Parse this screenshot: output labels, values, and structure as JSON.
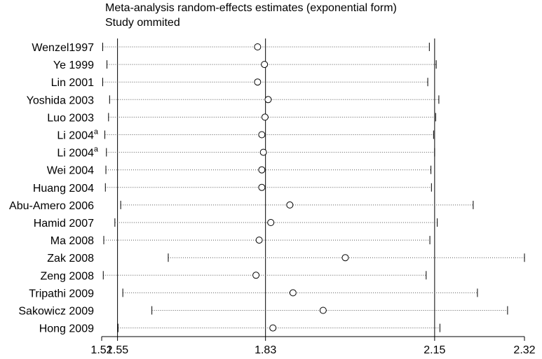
{
  "chart_data": {
    "type": "forest",
    "title": "Meta-analysis random-effects estimates (exponential form)",
    "subtitle": "Study ommited",
    "xlim": [
      1.52,
      2.32
    ],
    "xticks": [
      "1.52",
      "1.55",
      "1.83",
      "2.15",
      "2.32"
    ],
    "reference_lines": [
      1.55,
      1.83,
      2.15
    ],
    "studies": [
      {
        "label": "Wenzel1997",
        "sup": "",
        "estimate": 1.815,
        "lower": 1.522,
        "upper": 2.14
      },
      {
        "label": "Ye 1999",
        "sup": "",
        "estimate": 1.828,
        "lower": 1.53,
        "upper": 2.153
      },
      {
        "label": "Lin 2001",
        "sup": "",
        "estimate": 1.815,
        "lower": 1.522,
        "upper": 2.137
      },
      {
        "label": "Yoshida 2003",
        "sup": "",
        "estimate": 1.835,
        "lower": 1.535,
        "upper": 2.158
      },
      {
        "label": "Luo 2003",
        "sup": "",
        "estimate": 1.829,
        "lower": 1.533,
        "upper": 2.152
      },
      {
        "label": "Li 2004",
        "sup": "a",
        "estimate": 1.823,
        "lower": 1.526,
        "upper": 2.148
      },
      {
        "label": "Li 2004",
        "sup": "a",
        "estimate": 1.826,
        "lower": 1.529,
        "upper": 2.15
      },
      {
        "label": "Wei 2004",
        "sup": "",
        "estimate": 1.823,
        "lower": 1.528,
        "upper": 2.143
      },
      {
        "label": "Huang 2004",
        "sup": "",
        "estimate": 1.823,
        "lower": 1.527,
        "upper": 2.144
      },
      {
        "label": "Abu-Amero 2006",
        "sup": "",
        "estimate": 1.876,
        "lower": 1.556,
        "upper": 2.223
      },
      {
        "label": "Hamid 2007",
        "sup": "",
        "estimate": 1.84,
        "lower": 1.545,
        "upper": 2.155
      },
      {
        "label": "Ma 2008",
        "sup": "",
        "estimate": 1.818,
        "lower": 1.524,
        "upper": 2.141
      },
      {
        "label": "Zak 2008",
        "sup": "",
        "estimate": 1.981,
        "lower": 1.646,
        "upper": 2.32
      },
      {
        "label": "Zeng 2008",
        "sup": "",
        "estimate": 1.812,
        "lower": 1.523,
        "upper": 2.134
      },
      {
        "label": "Tripathi 2009",
        "sup": "",
        "estimate": 1.882,
        "lower": 1.56,
        "upper": 2.231
      },
      {
        "label": "Sakowicz 2009",
        "sup": "",
        "estimate": 1.939,
        "lower": 1.615,
        "upper": 2.288
      },
      {
        "label": "Hong 2009",
        "sup": "",
        "estimate": 1.844,
        "lower": 1.551,
        "upper": 2.16
      }
    ]
  }
}
